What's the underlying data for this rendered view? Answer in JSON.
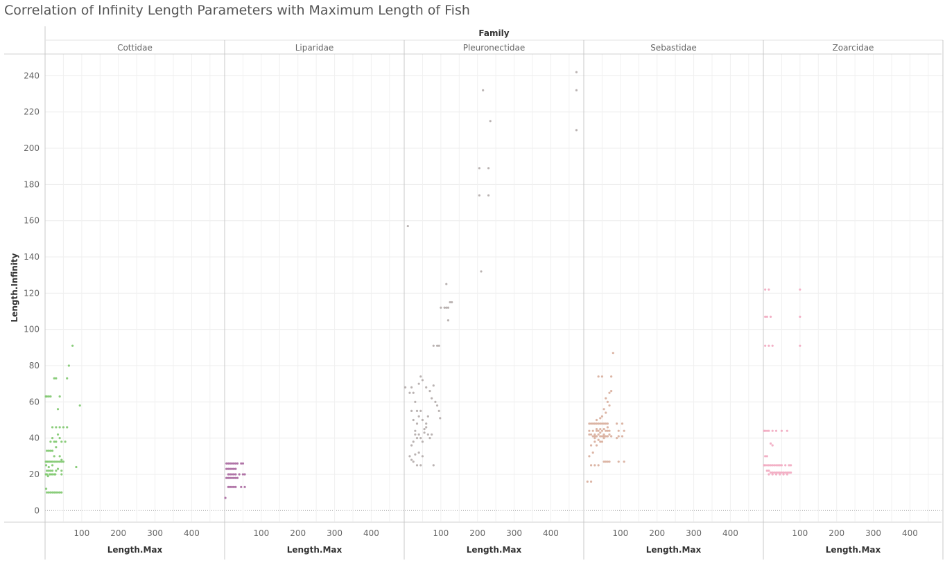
{
  "page": {
    "title": "Correlation of Infinity Length Parameters with Maximum Length of Fish"
  },
  "chart_data": {
    "type": "scatter",
    "title": "Correlation of Infinity Length Parameters with Maximum Length of Fish",
    "facet_label": "Family",
    "xlabel": "Length.Max",
    "ylabel": "Length.Infinity",
    "xlim": [
      0,
      490
    ],
    "ylim": [
      -6,
      252
    ],
    "x_ticks": [
      100,
      200,
      300,
      400
    ],
    "y_ticks": [
      0,
      20,
      40,
      60,
      80,
      100,
      120,
      140,
      160,
      180,
      200,
      220,
      240
    ],
    "grid": true,
    "panels": [
      {
        "name": "Cottidae",
        "color": "#7ec86e",
        "points": [
          [
            2,
            63
          ],
          [
            5,
            63
          ],
          [
            10,
            63
          ],
          [
            15,
            63
          ],
          [
            25,
            73
          ],
          [
            30,
            73
          ],
          [
            40,
            63
          ],
          [
            60,
            73
          ],
          [
            65,
            80
          ],
          [
            75,
            91
          ],
          [
            95,
            58
          ],
          [
            85,
            24
          ],
          [
            20,
            46
          ],
          [
            30,
            46
          ],
          [
            40,
            46
          ],
          [
            50,
            46
          ],
          [
            60,
            46
          ],
          [
            35,
            56
          ],
          [
            15,
            38
          ],
          [
            20,
            40
          ],
          [
            25,
            38
          ],
          [
            30,
            38
          ],
          [
            35,
            42
          ],
          [
            40,
            40
          ],
          [
            45,
            38
          ],
          [
            55,
            38
          ],
          [
            5,
            33
          ],
          [
            10,
            33
          ],
          [
            15,
            33
          ],
          [
            20,
            33
          ],
          [
            25,
            30
          ],
          [
            30,
            35
          ],
          [
            40,
            30
          ],
          [
            45,
            28
          ],
          [
            2,
            27
          ],
          [
            5,
            27
          ],
          [
            8,
            27
          ],
          [
            12,
            27
          ],
          [
            16,
            27
          ],
          [
            20,
            27
          ],
          [
            25,
            27
          ],
          [
            30,
            27
          ],
          [
            35,
            27
          ],
          [
            40,
            27
          ],
          [
            45,
            27
          ],
          [
            50,
            27
          ],
          [
            3,
            25
          ],
          [
            10,
            24
          ],
          [
            20,
            25
          ],
          [
            35,
            23
          ],
          [
            45,
            22
          ],
          [
            5,
            22
          ],
          [
            10,
            22
          ],
          [
            15,
            22
          ],
          [
            20,
            22
          ],
          [
            30,
            22
          ],
          [
            45,
            20
          ],
          [
            2,
            20
          ],
          [
            5,
            20
          ],
          [
            8,
            19
          ],
          [
            12,
            20
          ],
          [
            16,
            20
          ],
          [
            20,
            20
          ],
          [
            25,
            20
          ],
          [
            28,
            20
          ],
          [
            3,
            12
          ],
          [
            5,
            10
          ],
          [
            10,
            10
          ],
          [
            15,
            10
          ],
          [
            20,
            10
          ],
          [
            25,
            10
          ],
          [
            30,
            10
          ],
          [
            35,
            10
          ],
          [
            40,
            10
          ],
          [
            45,
            10
          ]
        ]
      },
      {
        "name": "Liparidae",
        "color": "#a8679e",
        "points": [
          [
            5,
            26
          ],
          [
            10,
            26
          ],
          [
            15,
            26
          ],
          [
            20,
            26
          ],
          [
            25,
            26
          ],
          [
            30,
            26
          ],
          [
            35,
            26
          ],
          [
            45,
            26
          ],
          [
            50,
            26
          ],
          [
            5,
            23
          ],
          [
            10,
            23
          ],
          [
            15,
            23
          ],
          [
            20,
            23
          ],
          [
            25,
            23
          ],
          [
            30,
            23
          ],
          [
            10,
            20
          ],
          [
            15,
            20
          ],
          [
            20,
            20
          ],
          [
            25,
            20
          ],
          [
            30,
            20
          ],
          [
            40,
            20
          ],
          [
            50,
            20
          ],
          [
            55,
            20
          ],
          [
            5,
            18
          ],
          [
            10,
            18
          ],
          [
            15,
            18
          ],
          [
            20,
            18
          ],
          [
            25,
            18
          ],
          [
            30,
            18
          ],
          [
            35,
            18
          ],
          [
            10,
            13
          ],
          [
            15,
            13
          ],
          [
            20,
            13
          ],
          [
            25,
            13
          ],
          [
            30,
            13
          ],
          [
            45,
            13
          ],
          [
            55,
            13
          ],
          [
            2,
            7
          ]
        ]
      },
      {
        "name": "Pleuronectidae",
        "color": "#b3abaa",
        "points": [
          [
            3,
            68
          ],
          [
            10,
            157
          ],
          [
            15,
            65
          ],
          [
            20,
            68
          ],
          [
            25,
            65
          ],
          [
            30,
            60
          ],
          [
            35,
            55
          ],
          [
            40,
            70
          ],
          [
            45,
            74
          ],
          [
            50,
            72
          ],
          [
            60,
            68
          ],
          [
            70,
            66
          ],
          [
            75,
            62
          ],
          [
            80,
            69
          ],
          [
            85,
            60
          ],
          [
            90,
            58
          ],
          [
            95,
            55
          ],
          [
            98,
            51
          ],
          [
            20,
            55
          ],
          [
            25,
            50
          ],
          [
            35,
            48
          ],
          [
            40,
            52
          ],
          [
            45,
            55
          ],
          [
            50,
            50
          ],
          [
            55,
            45
          ],
          [
            60,
            48
          ],
          [
            65,
            52
          ],
          [
            30,
            44
          ],
          [
            35,
            40
          ],
          [
            40,
            42
          ],
          [
            45,
            40
          ],
          [
            50,
            38
          ],
          [
            55,
            43
          ],
          [
            60,
            46
          ],
          [
            65,
            42
          ],
          [
            70,
            40
          ],
          [
            75,
            42
          ],
          [
            20,
            36
          ],
          [
            25,
            38
          ],
          [
            30,
            42
          ],
          [
            40,
            32
          ],
          [
            50,
            30
          ],
          [
            15,
            30
          ],
          [
            20,
            28
          ],
          [
            25,
            27
          ],
          [
            30,
            31
          ],
          [
            35,
            25
          ],
          [
            45,
            25
          ],
          [
            80,
            25
          ],
          [
            80,
            91
          ],
          [
            90,
            91
          ],
          [
            95,
            91
          ],
          [
            100,
            112
          ],
          [
            110,
            112
          ],
          [
            120,
            112
          ],
          [
            125,
            115
          ],
          [
            130,
            115
          ],
          [
            115,
            125
          ],
          [
            120,
            105
          ],
          [
            115,
            112
          ],
          [
            210,
            132
          ],
          [
            205,
            189
          ],
          [
            230,
            189
          ],
          [
            205,
            174
          ],
          [
            230,
            174
          ],
          [
            215,
            232
          ],
          [
            235,
            215
          ],
          [
            470,
            242
          ],
          [
            470,
            232
          ],
          [
            470,
            210
          ]
        ]
      },
      {
        "name": "Sebastidae",
        "color": "#d8ad9b",
        "points": [
          [
            10,
            16
          ],
          [
            20,
            16
          ],
          [
            15,
            30
          ],
          [
            25,
            32
          ],
          [
            20,
            36
          ],
          [
            35,
            36
          ],
          [
            30,
            38
          ],
          [
            45,
            38
          ],
          [
            55,
            40
          ],
          [
            15,
            48
          ],
          [
            20,
            48
          ],
          [
            25,
            48
          ],
          [
            30,
            48
          ],
          [
            35,
            48
          ],
          [
            40,
            48
          ],
          [
            45,
            48
          ],
          [
            50,
            48
          ],
          [
            55,
            48
          ],
          [
            60,
            48
          ],
          [
            65,
            48
          ],
          [
            15,
            44
          ],
          [
            25,
            44
          ],
          [
            30,
            42
          ],
          [
            35,
            44
          ],
          [
            40,
            44
          ],
          [
            45,
            43
          ],
          [
            50,
            44
          ],
          [
            55,
            42
          ],
          [
            60,
            44
          ],
          [
            65,
            44
          ],
          [
            70,
            44
          ],
          [
            15,
            42
          ],
          [
            20,
            42
          ],
          [
            25,
            41
          ],
          [
            30,
            41
          ],
          [
            35,
            41
          ],
          [
            40,
            42
          ],
          [
            45,
            41
          ],
          [
            50,
            41
          ],
          [
            55,
            41
          ],
          [
            60,
            41
          ],
          [
            65,
            41
          ],
          [
            70,
            42
          ],
          [
            75,
            41
          ],
          [
            35,
            50
          ],
          [
            45,
            51
          ],
          [
            50,
            52
          ],
          [
            55,
            56
          ],
          [
            60,
            54
          ],
          [
            65,
            60
          ],
          [
            70,
            58
          ],
          [
            60,
            62
          ],
          [
            70,
            65
          ],
          [
            75,
            66
          ],
          [
            40,
            74
          ],
          [
            50,
            74
          ],
          [
            75,
            74
          ],
          [
            80,
            87
          ],
          [
            35,
            45
          ],
          [
            45,
            45
          ],
          [
            55,
            45
          ],
          [
            65,
            46
          ],
          [
            30,
            40
          ],
          [
            40,
            39
          ],
          [
            50,
            38
          ],
          [
            55,
            27
          ],
          [
            60,
            27
          ],
          [
            65,
            27
          ],
          [
            70,
            27
          ],
          [
            20,
            25
          ],
          [
            30,
            25
          ],
          [
            40,
            25
          ],
          [
            90,
            48
          ],
          [
            95,
            44
          ],
          [
            95,
            41
          ],
          [
            90,
            40
          ],
          [
            105,
            48
          ],
          [
            110,
            44
          ],
          [
            105,
            41
          ],
          [
            110,
            27
          ],
          [
            95,
            27
          ]
        ]
      },
      {
        "name": "Zoarcidae",
        "color": "#f2a8c0",
        "points": [
          [
            5,
            122
          ],
          [
            15,
            122
          ],
          [
            100,
            122
          ],
          [
            5,
            107
          ],
          [
            10,
            107
          ],
          [
            20,
            107
          ],
          [
            100,
            107
          ],
          [
            5,
            91
          ],
          [
            15,
            91
          ],
          [
            25,
            91
          ],
          [
            100,
            91
          ],
          [
            2,
            44
          ],
          [
            5,
            44
          ],
          [
            10,
            44
          ],
          [
            15,
            44
          ],
          [
            25,
            44
          ],
          [
            35,
            44
          ],
          [
            50,
            44
          ],
          [
            65,
            44
          ],
          [
            20,
            37
          ],
          [
            25,
            36
          ],
          [
            5,
            30
          ],
          [
            10,
            30
          ],
          [
            2,
            25
          ],
          [
            5,
            25
          ],
          [
            10,
            25
          ],
          [
            15,
            25
          ],
          [
            20,
            25
          ],
          [
            25,
            25
          ],
          [
            30,
            25
          ],
          [
            35,
            25
          ],
          [
            40,
            25
          ],
          [
            45,
            25
          ],
          [
            50,
            25
          ],
          [
            60,
            25
          ],
          [
            70,
            25
          ],
          [
            75,
            25
          ],
          [
            10,
            22
          ],
          [
            15,
            22
          ],
          [
            20,
            21
          ],
          [
            25,
            21
          ],
          [
            30,
            21
          ],
          [
            35,
            21
          ],
          [
            40,
            21
          ],
          [
            45,
            21
          ],
          [
            50,
            21
          ],
          [
            55,
            21
          ],
          [
            60,
            21
          ],
          [
            65,
            21
          ],
          [
            70,
            21
          ],
          [
            75,
            21
          ],
          [
            15,
            20
          ],
          [
            25,
            20
          ],
          [
            35,
            20
          ],
          [
            45,
            20
          ],
          [
            55,
            20
          ],
          [
            65,
            20
          ]
        ]
      }
    ]
  }
}
